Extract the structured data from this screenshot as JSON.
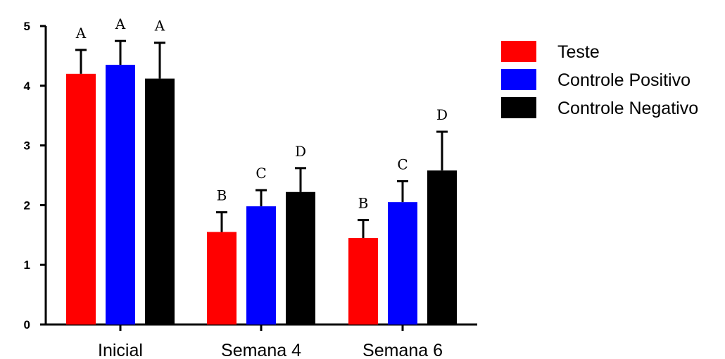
{
  "chart_data": {
    "type": "bar",
    "title": "",
    "xlabel": "",
    "ylabel": "",
    "ylim": [
      0,
      5
    ],
    "yticks": [
      0,
      1,
      2,
      3,
      4,
      5
    ],
    "categories": [
      "Inicial",
      "Semana 4",
      "Semana 6"
    ],
    "series": [
      {
        "name": "Teste",
        "color": "#ff0000",
        "values": [
          4.2,
          1.55,
          1.45
        ],
        "errors": [
          0.4,
          0.33,
          0.3
        ],
        "sig": [
          "A",
          "B",
          "B"
        ]
      },
      {
        "name": "Controle Positivo",
        "color": "#0000ff",
        "values": [
          4.35,
          1.98,
          2.05
        ],
        "errors": [
          0.4,
          0.27,
          0.35
        ],
        "sig": [
          "A",
          "C",
          "C"
        ]
      },
      {
        "name": "Controle Negativo",
        "color": "#000000",
        "values": [
          4.12,
          2.22,
          2.58
        ],
        "errors": [
          0.6,
          0.4,
          0.65
        ],
        "sig": [
          "A",
          "D",
          "D"
        ]
      }
    ],
    "error_bars": "upper",
    "grid": false,
    "legend_position": "right"
  }
}
